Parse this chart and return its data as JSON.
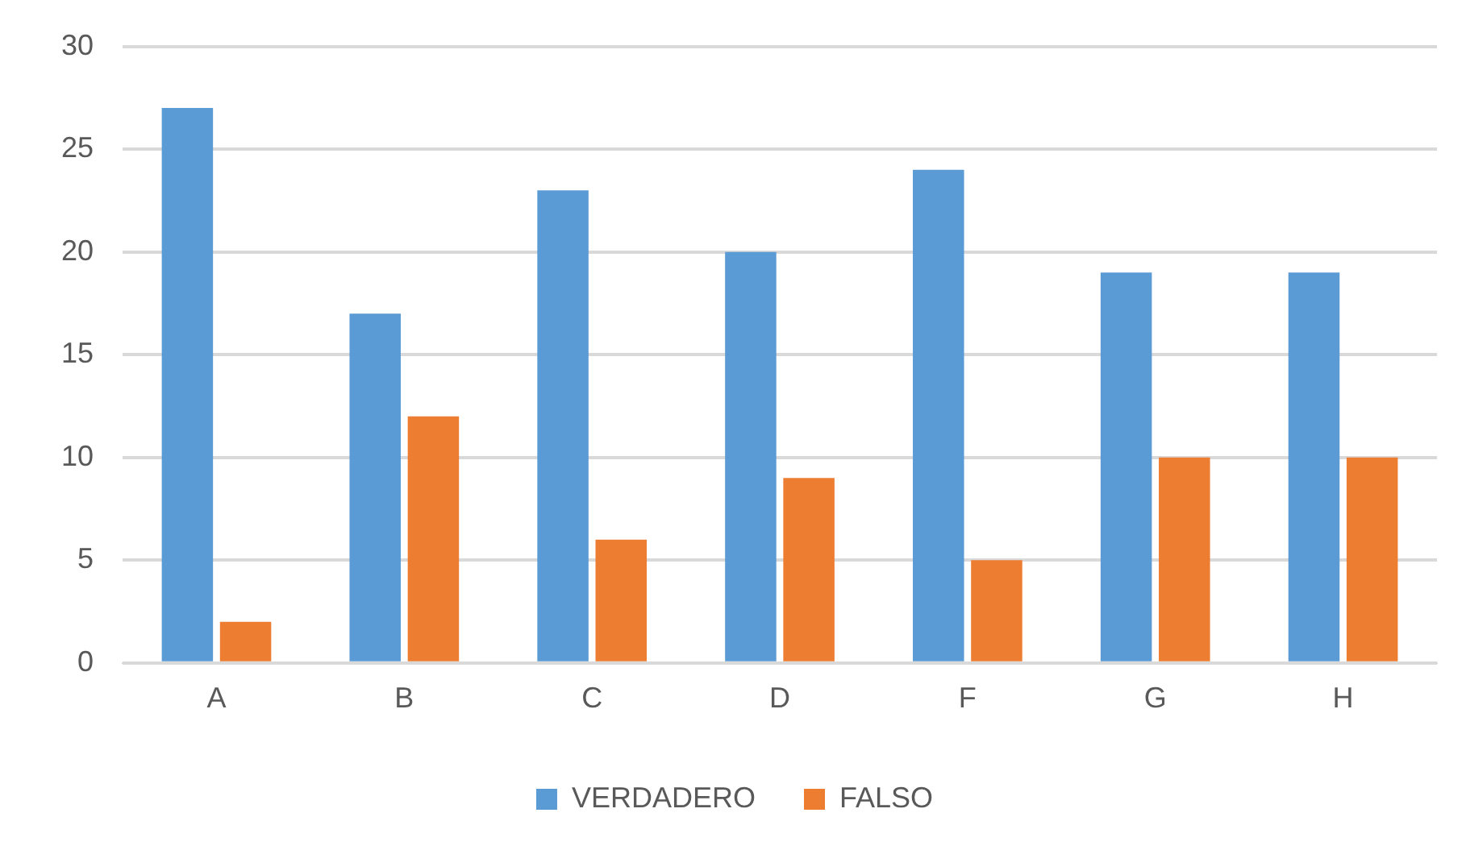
{
  "chart_data": {
    "type": "bar",
    "categories": [
      "A",
      "B",
      "C",
      "D",
      "F",
      "G",
      "H"
    ],
    "series": [
      {
        "name": "VERDADERO",
        "color": "#5b9bd5",
        "values": [
          27,
          17,
          23,
          20,
          24,
          19,
          19
        ]
      },
      {
        "name": "FALSO",
        "color": "#ed7d31",
        "values": [
          2,
          12,
          6,
          9,
          5,
          10,
          10
        ]
      }
    ],
    "ylim": [
      0,
      30
    ],
    "yticks": [
      0,
      5,
      10,
      15,
      20,
      25,
      30
    ],
    "grid": "y",
    "legend": "bottom"
  }
}
